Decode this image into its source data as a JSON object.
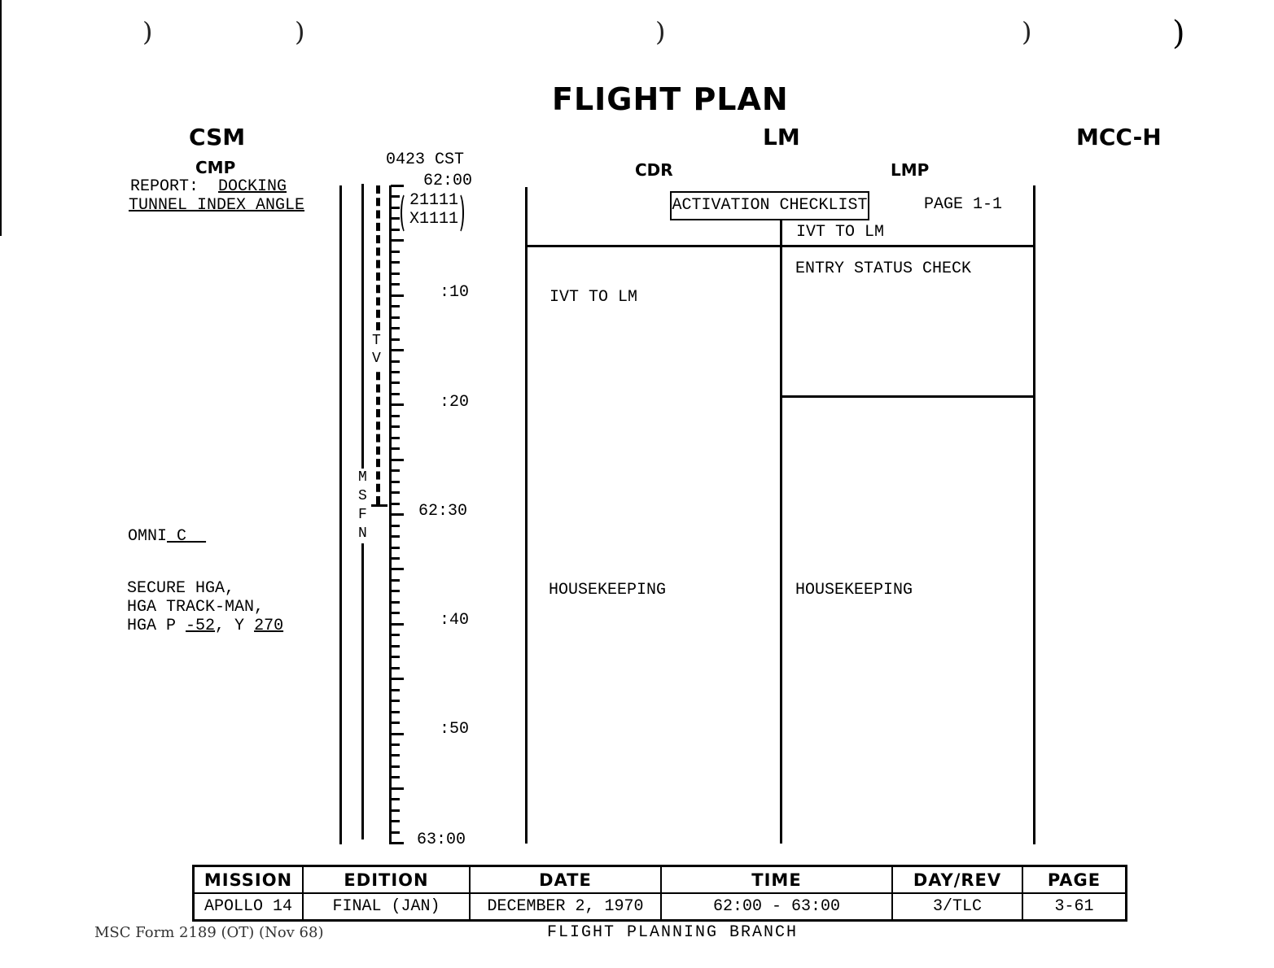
{
  "title": "FLIGHT PLAN",
  "sections": {
    "csm": "CSM",
    "lm": "LM",
    "mcc": "MCC-H"
  },
  "crew": {
    "cmp": "CMP",
    "cdr": "CDR",
    "lmp": "LMP"
  },
  "timeline": {
    "cst": "0423 CST",
    "labels": [
      "62:00",
      ":10",
      ":20",
      "62:30",
      ":40",
      ":50",
      "63:00"
    ],
    "code_line1": "21111",
    "code_line2": "X1111",
    "tv_label": "TV",
    "msfn_label": "MSFN"
  },
  "cmp_notes": {
    "report_prefix": "REPORT:",
    "report_docking": "DOCKING",
    "report_line2": "TUNNEL INDEX ANGLE",
    "omni_prefix": "OMNI",
    "omni_value": "C",
    "hga_line1": "SECURE HGA,",
    "hga_line2": "HGA TRACK-MAN,",
    "hga_p_prefix": "HGA P",
    "hga_p_value": "-52",
    "hga_y_prefix": ", Y",
    "hga_y_value": "270"
  },
  "lm": {
    "activation_checklist": "ACTIVATION CHECKLIST",
    "page_ref": "PAGE 1-1",
    "lmp_ivt": "IVT TO LM",
    "cdr_ivt": "IVT TO LM",
    "entry_status": "ENTRY STATUS CHECK",
    "cdr_housekeeping": "HOUSEKEEPING",
    "lmp_housekeeping": "HOUSEKEEPING"
  },
  "footer": {
    "headers": [
      "MISSION",
      "EDITION",
      "DATE",
      "TIME",
      "DAY/REV",
      "PAGE"
    ],
    "values": [
      "APOLLO 14",
      "FINAL (JAN)",
      "DECEMBER 2, 1970",
      "62:00 - 63:00",
      "3/TLC",
      "3-61"
    ],
    "form": "MSC Form 2189 (OT) (Nov 68)",
    "branch": "FLIGHT PLANNING BRANCH"
  }
}
